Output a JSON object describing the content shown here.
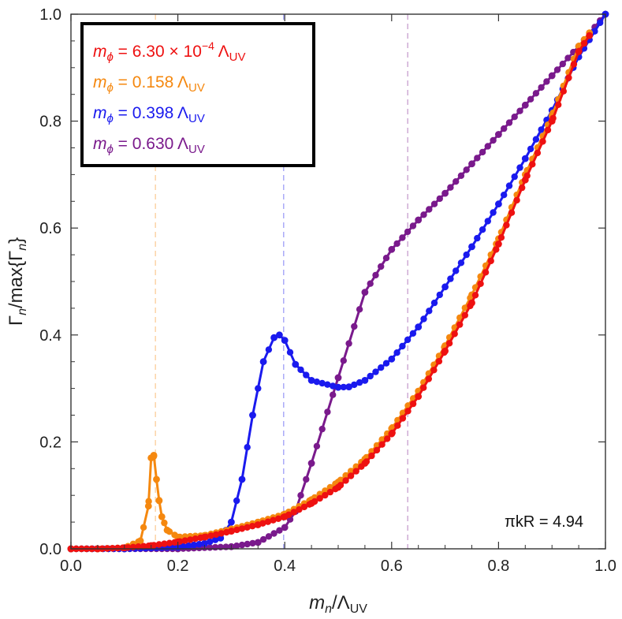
{
  "chart_data": {
    "type": "line",
    "xlabel": "m_n/Λ_UV",
    "ylabel": "Γ_n/max{Γ_n}",
    "xlim": [
      0.0,
      1.0
    ],
    "ylim": [
      0.0,
      1.0
    ],
    "x_ticks": [
      "0.0",
      "0.2",
      "0.4",
      "0.6",
      "0.8",
      "1.0"
    ],
    "y_ticks": [
      "0.0",
      "0.2",
      "0.4",
      "0.6",
      "0.8",
      "1.0"
    ],
    "grid": false,
    "legend_position": "top-left",
    "annotation": "πkR = 4.94",
    "series": [
      {
        "name": "m_ϕ = 6.30 × 10^-4 Λ_UV",
        "color": "#ee1111",
        "marker_line": null,
        "x": [
          0.0,
          0.05,
          0.1,
          0.15,
          0.2,
          0.25,
          0.3,
          0.35,
          0.4,
          0.45,
          0.5,
          0.55,
          0.6,
          0.65,
          0.7,
          0.75,
          0.8,
          0.85,
          0.9,
          0.95,
          0.97
        ],
        "y": [
          0.0,
          0.0,
          0.002,
          0.006,
          0.013,
          0.022,
          0.033,
          0.045,
          0.06,
          0.085,
          0.115,
          0.16,
          0.215,
          0.285,
          0.37,
          0.46,
          0.57,
          0.69,
          0.8,
          0.93,
          0.96
        ]
      },
      {
        "name": "m_ϕ = 0.158 Λ_UV",
        "color": "#f5880f",
        "marker_line": 0.158,
        "x": [
          0.0,
          0.05,
          0.1,
          0.13,
          0.145,
          0.15,
          0.155,
          0.16,
          0.165,
          0.17,
          0.18,
          0.2,
          0.25,
          0.3,
          0.35,
          0.4,
          0.45,
          0.5,
          0.55,
          0.6,
          0.65,
          0.7,
          0.75,
          0.8,
          0.85,
          0.9,
          0.95,
          0.97
        ],
        "y": [
          0.0,
          0.0,
          0.002,
          0.015,
          0.08,
          0.17,
          0.175,
          0.13,
          0.09,
          0.06,
          0.035,
          0.022,
          0.025,
          0.037,
          0.05,
          0.065,
          0.092,
          0.125,
          0.168,
          0.225,
          0.295,
          0.38,
          0.475,
          0.58,
          0.7,
          0.81,
          0.94,
          0.965
        ]
      },
      {
        "name": "m_ϕ = 0.398 Λ_UV",
        "color": "#1a1aee",
        "marker_line": 0.398,
        "x": [
          0.0,
          0.1,
          0.2,
          0.25,
          0.28,
          0.3,
          0.32,
          0.34,
          0.36,
          0.38,
          0.39,
          0.4,
          0.42,
          0.45,
          0.5,
          0.52,
          0.55,
          0.6,
          0.65,
          0.7,
          0.75,
          0.8,
          0.85,
          0.9,
          0.95,
          1.0
        ],
        "y": [
          0.0,
          0.0,
          0.003,
          0.01,
          0.02,
          0.05,
          0.13,
          0.25,
          0.35,
          0.395,
          0.4,
          0.39,
          0.345,
          0.315,
          0.302,
          0.303,
          0.315,
          0.355,
          0.415,
          0.49,
          0.565,
          0.645,
          0.73,
          0.82,
          0.92,
          1.0
        ]
      },
      {
        "name": "m_ϕ = 0.630 Λ_UV",
        "color": "#7a1a8c",
        "marker_line": 0.63,
        "x": [
          0.0,
          0.1,
          0.2,
          0.3,
          0.35,
          0.4,
          0.42,
          0.45,
          0.5,
          0.55,
          0.6,
          0.65,
          0.7,
          0.75,
          0.8,
          0.85,
          0.9,
          0.95,
          1.0
        ],
        "y": [
          0.0,
          0.0,
          0.0,
          0.004,
          0.012,
          0.04,
          0.07,
          0.16,
          0.32,
          0.48,
          0.56,
          0.615,
          0.665,
          0.72,
          0.775,
          0.83,
          0.885,
          0.94,
          1.0
        ]
      }
    ]
  },
  "legend": [
    {
      "lhs": "m",
      "sub": "ϕ",
      "eq": " = ",
      "val": "6.30 × 10",
      "sup": "−4",
      "unit": " Λ",
      "unit_sub": "UV"
    },
    {
      "lhs": "m",
      "sub": "ϕ",
      "eq": " = ",
      "val": "0.158",
      "sup": "",
      "unit": " Λ",
      "unit_sub": "UV"
    },
    {
      "lhs": "m",
      "sub": "ϕ",
      "eq": " = ",
      "val": "0.398",
      "sup": "",
      "unit": " Λ",
      "unit_sub": "UV"
    },
    {
      "lhs": "m",
      "sub": "ϕ",
      "eq": " = ",
      "val": "0.630",
      "sup": "",
      "unit": " Λ",
      "unit_sub": "UV"
    }
  ]
}
